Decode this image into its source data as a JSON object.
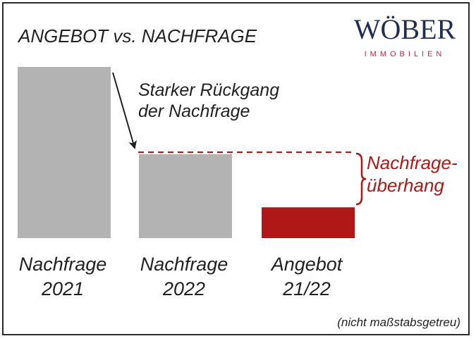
{
  "brand": {
    "name": "WÖBER",
    "tagline": "IMMOBILIEN",
    "name_color": "#1f2e52",
    "tagline_color": "#c0264a"
  },
  "chart_data": {
    "type": "bar",
    "title": "ANGEBOT vs. NACHFRAGE",
    "categories": [
      {
        "line1": "Nachfrage",
        "line2": "2021"
      },
      {
        "line1": "Nachfrage",
        "line2": "2022"
      },
      {
        "line1": "Angebot",
        "line2": "21/22"
      }
    ],
    "values": [
      100,
      49,
      18
    ],
    "colors": [
      "#b3b3b3",
      "#b3b3b3",
      "#b01818"
    ],
    "annotations": {
      "decline": {
        "line1": "Starker Rückgang",
        "line2": "der Nachfrage"
      },
      "surplus": {
        "line1": "Nachfrage-",
        "line2": "überhang",
        "color": "#b01818"
      }
    },
    "footnote": "(nicht maßstabsgetreu)",
    "grid": false,
    "legend": "none"
  }
}
